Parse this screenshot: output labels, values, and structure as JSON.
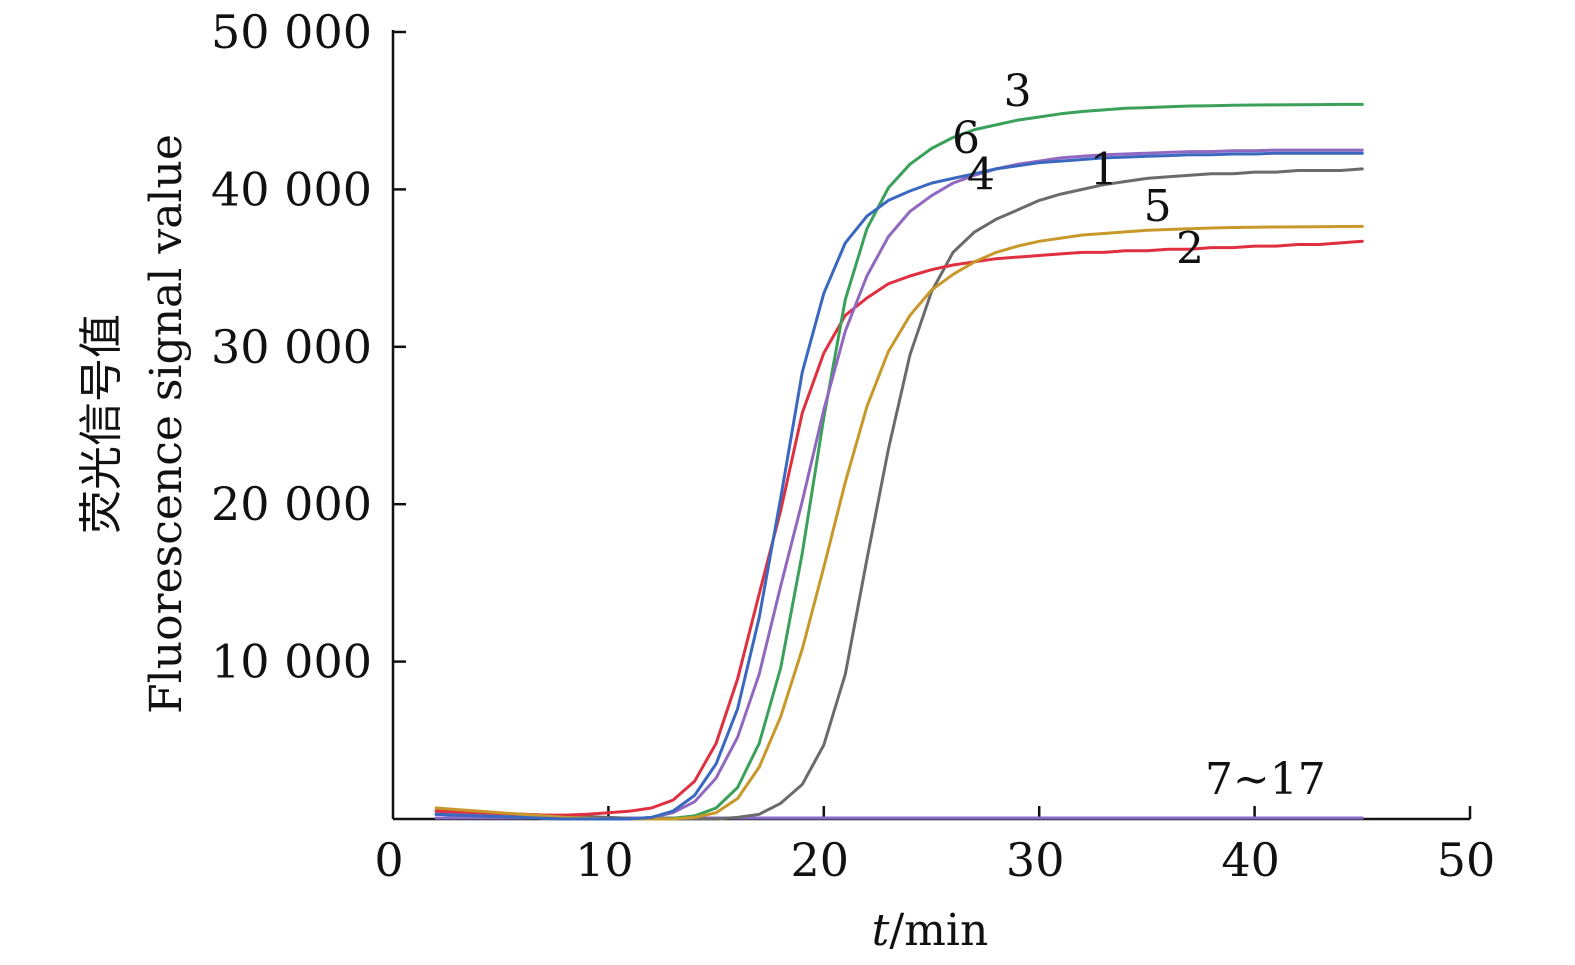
{
  "chart_data": {
    "type": "line",
    "xlim": [
      0,
      50
    ],
    "ylim": [
      0,
      50000
    ],
    "x_ticks": [
      {
        "value": 0,
        "label": "0"
      },
      {
        "value": 10,
        "label": "10"
      },
      {
        "value": 20,
        "label": "20"
      },
      {
        "value": 30,
        "label": "30"
      },
      {
        "value": 40,
        "label": "40"
      },
      {
        "value": 50,
        "label": "50"
      }
    ],
    "y_ticks": [
      {
        "value": 10000,
        "label": "10 000"
      },
      {
        "value": 20000,
        "label": "20 000"
      },
      {
        "value": 30000,
        "label": "30 000"
      },
      {
        "value": 40000,
        "label": "40 000"
      },
      {
        "value": 50000,
        "label": "50 000"
      }
    ],
    "xlabel_italic": "t",
    "xlabel_rest": "/min",
    "ylabel_cn": "荧光信号值",
    "ylabel_en": "Fluorescence signal value",
    "grid": false,
    "legend": "none",
    "x": [
      2,
      3,
      4,
      5,
      6,
      7,
      8,
      9,
      10,
      11,
      12,
      13,
      14,
      15,
      16,
      17,
      18,
      19,
      20,
      21,
      22,
      23,
      24,
      25,
      26,
      27,
      28,
      29,
      30,
      31,
      32,
      33,
      34,
      35,
      36,
      37,
      38,
      39,
      40,
      41,
      42,
      43,
      44,
      45
    ],
    "series": [
      {
        "name": "1",
        "color": "#6b6b6b",
        "label_at": [
          33,
          40300
        ],
        "values": [
          500,
          450,
          400,
          350,
          300,
          250,
          200,
          150,
          100,
          50,
          0,
          0,
          0,
          0,
          100,
          300,
          1000,
          2200,
          4700,
          9200,
          16500,
          23500,
          29500,
          33500,
          36000,
          37300,
          38100,
          38700,
          39300,
          39700,
          40000,
          40300,
          40500,
          40700,
          40800,
          40900,
          41000,
          41000,
          41100,
          41100,
          41200,
          41200,
          41200,
          41300
        ]
      },
      {
        "name": "2",
        "color": "#e03040",
        "label_at": [
          37,
          35300
        ],
        "values": [
          500,
          450,
          400,
          350,
          300,
          250,
          250,
          300,
          400,
          500,
          700,
          1200,
          2400,
          4800,
          8900,
          14300,
          19600,
          25800,
          29600,
          32000,
          33100,
          34000,
          34500,
          34900,
          35200,
          35400,
          35600,
          35700,
          35800,
          35900,
          36000,
          36000,
          36100,
          36100,
          36200,
          36200,
          36300,
          36300,
          36400,
          36400,
          36500,
          36500,
          36600,
          36700
        ]
      },
      {
        "name": "3",
        "color": "#3aa05a",
        "label_at": [
          29,
          45300
        ],
        "values": [
          300,
          250,
          200,
          150,
          100,
          50,
          0,
          0,
          0,
          0,
          0,
          50,
          200,
          700,
          2000,
          4800,
          9600,
          16900,
          25500,
          33000,
          37500,
          40100,
          41600,
          42600,
          43300,
          43800,
          44100,
          44400,
          44600,
          44800,
          44950,
          45050,
          45150,
          45200,
          45250,
          45300,
          45320,
          45340,
          45360,
          45370,
          45380,
          45390,
          45400,
          45400
        ]
      },
      {
        "name": "4",
        "color": "#9068c0",
        "label_at": [
          27.3,
          40000
        ],
        "values": [
          300,
          250,
          200,
          150,
          100,
          50,
          0,
          0,
          0,
          0,
          100,
          400,
          1100,
          2600,
          5200,
          9200,
          14800,
          20200,
          26000,
          31000,
          34500,
          37000,
          38600,
          39600,
          40400,
          40900,
          41300,
          41600,
          41800,
          42000,
          42100,
          42200,
          42250,
          42300,
          42350,
          42400,
          42400,
          42450,
          42450,
          42500,
          42500,
          42500,
          42500,
          42500
        ]
      },
      {
        "name": "5",
        "color": "#c8982a",
        "label_at": [
          35.5,
          38000
        ],
        "values": [
          700,
          600,
          500,
          400,
          300,
          200,
          100,
          50,
          0,
          0,
          0,
          0,
          100,
          400,
          1300,
          3300,
          6500,
          10800,
          16000,
          21400,
          26200,
          29700,
          32000,
          33600,
          34600,
          35400,
          36000,
          36400,
          36700,
          36900,
          37100,
          37200,
          37300,
          37400,
          37450,
          37500,
          37550,
          37580,
          37600,
          37610,
          37620,
          37630,
          37640,
          37650
        ]
      },
      {
        "name": "6",
        "color": "#3a68c0",
        "label_at": [
          26.6,
          42300
        ],
        "values": [
          300,
          250,
          200,
          150,
          100,
          50,
          0,
          0,
          0,
          0,
          100,
          500,
          1500,
          3500,
          7000,
          12800,
          20400,
          28400,
          33400,
          36600,
          38300,
          39300,
          39900,
          40400,
          40700,
          41000,
          41300,
          41500,
          41700,
          41800,
          41900,
          42000,
          42050,
          42100,
          42150,
          42200,
          42200,
          42250,
          42250,
          42300,
          42300,
          42300,
          42300,
          42300
        ]
      }
    ],
    "group_label": {
      "text": "7~17",
      "x": 40.5,
      "y": 1600,
      "line_color": "#8a6ac8"
    }
  }
}
